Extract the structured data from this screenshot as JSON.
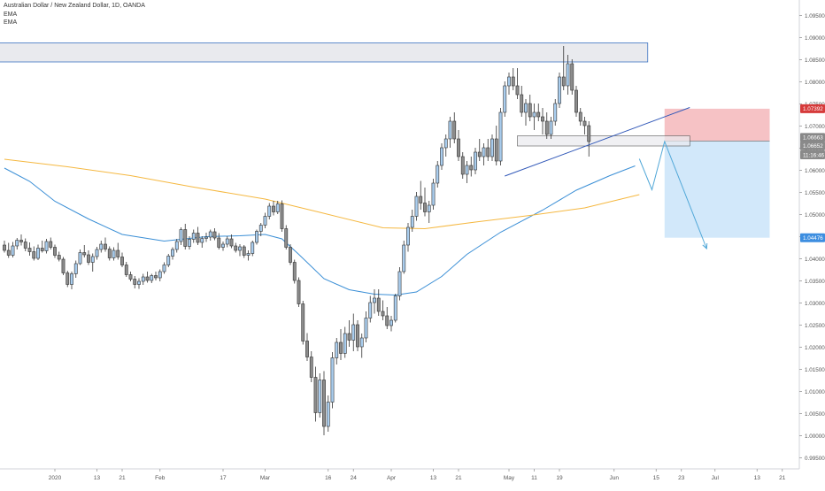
{
  "header": {
    "symbol_line": "Australian Dollar / New Zealand Dollar, 1D, OANDA",
    "indicators": [
      "EMA",
      "EMA"
    ]
  },
  "colors": {
    "up_fill": "#a9cdee",
    "down_fill": "#8c8c8c",
    "candle_stroke": "#333333",
    "ema_fast": "#3b8fd6",
    "ema_slow": "#f5b841",
    "trendline": "#3158b8",
    "zone_fill": "#e9eaee",
    "zone_stroke": "#3b73c2",
    "stop_fill": "#f5b7bb",
    "target_fill": "#cde5fa",
    "projection": "#52a8d8",
    "axis_text": "#555555"
  },
  "chart_data": {
    "type": "candlestick",
    "symbol": "AUDNZD",
    "timeframe": "1D",
    "y_axis": {
      "range": [
        0.9925,
        1.0985
      ],
      "ticks": [
        "1.09500",
        "1.09000",
        "1.08500",
        "1.08000",
        "1.07500",
        "1.07000",
        "1.06500",
        "1.06000",
        "1.05500",
        "1.05000",
        "1.04500",
        "1.04000",
        "1.03500",
        "1.03000",
        "1.02500",
        "1.02000",
        "1.01500",
        "1.01000",
        "1.00500",
        "1.00000",
        "0.99500"
      ]
    },
    "x_axis": {
      "tick_labels": [
        {
          "label": "2020",
          "bar": 12
        },
        {
          "label": "13",
          "bar": 22
        },
        {
          "label": "21",
          "bar": 28
        },
        {
          "label": "Feb",
          "bar": 37
        },
        {
          "label": "17",
          "bar": 52
        },
        {
          "label": "Mar",
          "bar": 62
        },
        {
          "label": "16",
          "bar": 77
        },
        {
          "label": "24",
          "bar": 83
        },
        {
          "label": "Apr",
          "bar": 92
        },
        {
          "label": "13",
          "bar": 102
        },
        {
          "label": "21",
          "bar": 108
        },
        {
          "label": "May",
          "bar": 120
        },
        {
          "label": "11",
          "bar": 126
        },
        {
          "label": "19",
          "bar": 132
        },
        {
          "label": "Jun",
          "bar": 145
        },
        {
          "label": "15",
          "bar": 155
        },
        {
          "label": "23",
          "bar": 161
        },
        {
          "label": "Jul",
          "bar": 169
        },
        {
          "label": "13",
          "bar": 179
        },
        {
          "label": "21",
          "bar": 185
        }
      ]
    },
    "ohlc": [
      [
        1.0431,
        1.0441,
        1.0414,
        1.0419
      ],
      [
        1.0419,
        1.0436,
        1.0402,
        1.0408
      ],
      [
        1.0408,
        1.0438,
        1.0403,
        1.0429
      ],
      [
        1.0429,
        1.0447,
        1.0421,
        1.0442
      ],
      [
        1.0442,
        1.0455,
        1.043,
        1.0438
      ],
      [
        1.0438,
        1.0446,
        1.0417,
        1.0424
      ],
      [
        1.0424,
        1.0437,
        1.0407,
        1.0416
      ],
      [
        1.0416,
        1.0428,
        1.0396,
        1.0401
      ],
      [
        1.0401,
        1.0432,
        1.0397,
        1.0424
      ],
      [
        1.0424,
        1.0441,
        1.0414,
        1.0418
      ],
      [
        1.0418,
        1.0445,
        1.0412,
        1.0439
      ],
      [
        1.0439,
        1.0448,
        1.0421,
        1.0426
      ],
      [
        1.0426,
        1.0432,
        1.0402,
        1.0408
      ],
      [
        1.0408,
        1.0416,
        1.0394,
        1.0399
      ],
      [
        1.0399,
        1.0404,
        1.0363,
        1.0368
      ],
      [
        1.0368,
        1.0373,
        1.0336,
        1.0342
      ],
      [
        1.0342,
        1.0371,
        1.0331,
        1.0366
      ],
      [
        1.0366,
        1.0396,
        1.0357,
        1.0389
      ],
      [
        1.0389,
        1.0421,
        1.0386,
        1.0414
      ],
      [
        1.0414,
        1.0431,
        1.0403,
        1.0409
      ],
      [
        1.0409,
        1.0419,
        1.0386,
        1.0392
      ],
      [
        1.0392,
        1.0412,
        1.0371,
        1.0405
      ],
      [
        1.0405,
        1.0427,
        1.0398,
        1.0421
      ],
      [
        1.0421,
        1.0441,
        1.0414,
        1.0433
      ],
      [
        1.0433,
        1.0448,
        1.0416,
        1.0422
      ],
      [
        1.0422,
        1.0428,
        1.0396,
        1.0402
      ],
      [
        1.0402,
        1.0426,
        1.0396,
        1.0419
      ],
      [
        1.0419,
        1.0436,
        1.0398,
        1.0404
      ],
      [
        1.0404,
        1.0414,
        1.0381,
        1.0386
      ],
      [
        1.0386,
        1.0393,
        1.0359,
        1.0364
      ],
      [
        1.0364,
        1.0371,
        1.0349,
        1.0354
      ],
      [
        1.0354,
        1.0361,
        1.0333,
        1.0342
      ],
      [
        1.0342,
        1.0356,
        1.0332,
        1.0349
      ],
      [
        1.0349,
        1.0366,
        1.0341,
        1.0359
      ],
      [
        1.0359,
        1.0371,
        1.0346,
        1.0351
      ],
      [
        1.0351,
        1.0366,
        1.0345,
        1.0362
      ],
      [
        1.0362,
        1.0371,
        1.0351,
        1.0357
      ],
      [
        1.0357,
        1.0376,
        1.0349,
        1.0371
      ],
      [
        1.0371,
        1.0392,
        1.0366,
        1.0386
      ],
      [
        1.0386,
        1.0411,
        1.0381,
        1.0406
      ],
      [
        1.0406,
        1.0426,
        1.0398,
        1.0421
      ],
      [
        1.0421,
        1.0445,
        1.0414,
        1.0439
      ],
      [
        1.0439,
        1.0471,
        1.0431,
        1.0466
      ],
      [
        1.0466,
        1.0479,
        1.0421,
        1.0428
      ],
      [
        1.0428,
        1.0451,
        1.0421,
        1.0444
      ],
      [
        1.0444,
        1.0466,
        1.0436,
        1.0458
      ],
      [
        1.0458,
        1.0472,
        1.0431,
        1.0437
      ],
      [
        1.0437,
        1.0451,
        1.0425,
        1.0446
      ],
      [
        1.0446,
        1.0459,
        1.0438,
        1.0449
      ],
      [
        1.0449,
        1.0466,
        1.0441,
        1.0461
      ],
      [
        1.0461,
        1.0469,
        1.0442,
        1.0447
      ],
      [
        1.0447,
        1.0458,
        1.0421,
        1.0426
      ],
      [
        1.0426,
        1.0439,
        1.0418,
        1.0433
      ],
      [
        1.0433,
        1.0451,
        1.0426,
        1.0445
      ],
      [
        1.0445,
        1.0455,
        1.0424,
        1.0429
      ],
      [
        1.0429,
        1.0436,
        1.0414,
        1.0419
      ],
      [
        1.0419,
        1.0433,
        1.0406,
        1.0427
      ],
      [
        1.0427,
        1.0431,
        1.0402,
        1.0408
      ],
      [
        1.0408,
        1.0419,
        1.0396,
        1.0412
      ],
      [
        1.0412,
        1.0441,
        1.0406,
        1.0437
      ],
      [
        1.0437,
        1.0466,
        1.0432,
        1.0462
      ],
      [
        1.0462,
        1.0481,
        1.0451,
        1.0476
      ],
      [
        1.0476,
        1.0504,
        1.0469,
        1.0496
      ],
      [
        1.0496,
        1.0526,
        1.0489,
        1.0519
      ],
      [
        1.0519,
        1.0531,
        1.0498,
        1.0506
      ],
      [
        1.0506,
        1.0531,
        1.0501,
        1.0524
      ],
      [
        1.0524,
        1.0532,
        1.0461,
        1.0468
      ],
      [
        1.0468,
        1.0476,
        1.0421,
        1.0426
      ],
      [
        1.0426,
        1.0433,
        1.0386,
        1.0392
      ],
      [
        1.0392,
        1.0398,
        1.0344,
        1.0351
      ],
      [
        1.0351,
        1.0358,
        1.0291,
        1.0298
      ],
      [
        1.0298,
        1.0305,
        1.0206,
        1.0214
      ],
      [
        1.0214,
        1.0232,
        1.0169,
        1.0178
      ],
      [
        1.0178,
        1.0191,
        1.0121,
        1.0132
      ],
      [
        1.0132,
        1.0156,
        1.0032,
        1.0052
      ],
      [
        1.0052,
        1.0141,
        1.0041,
        1.0126
      ],
      [
        1.0126,
        1.0146,
        1.0001,
        1.0021
      ],
      [
        1.0021,
        1.0091,
        1.0009,
        1.0076
      ],
      [
        1.0076,
        1.0189,
        1.0062,
        1.0176
      ],
      [
        1.0176,
        1.0221,
        1.0161,
        1.0211
      ],
      [
        1.0211,
        1.0241,
        1.0171,
        1.0186
      ],
      [
        1.0186,
        1.0246,
        1.0176,
        1.0231
      ],
      [
        1.0231,
        1.0261,
        1.0201,
        1.0216
      ],
      [
        1.0216,
        1.0276,
        1.0191,
        1.0251
      ],
      [
        1.0251,
        1.0261,
        1.0191,
        1.0201
      ],
      [
        1.0201,
        1.0231,
        1.0176,
        1.0221
      ],
      [
        1.0221,
        1.0281,
        1.0211,
        1.0266
      ],
      [
        1.0266,
        1.0316,
        1.0256,
        1.0301
      ],
      [
        1.0301,
        1.0331,
        1.0276,
        1.0311
      ],
      [
        1.0311,
        1.0331,
        1.0271,
        1.0281
      ],
      [
        1.0281,
        1.0306,
        1.0261,
        1.0271
      ],
      [
        1.0271,
        1.0291,
        1.0241,
        1.0249
      ],
      [
        1.0249,
        1.0271,
        1.0236,
        1.0261
      ],
      [
        1.0261,
        1.0321,
        1.0256,
        1.0316
      ],
      [
        1.0316,
        1.0381,
        1.0306,
        1.0371
      ],
      [
        1.0371,
        1.0441,
        1.0366,
        1.0431
      ],
      [
        1.0431,
        1.0481,
        1.0416,
        1.0471
      ],
      [
        1.0471,
        1.0511,
        1.0461,
        1.0496
      ],
      [
        1.0496,
        1.0551,
        1.0486,
        1.0541
      ],
      [
        1.0541,
        1.0576,
        1.0511,
        1.0526
      ],
      [
        1.0526,
        1.0561,
        1.0496,
        1.0506
      ],
      [
        1.0506,
        1.0531,
        1.0481,
        1.0521
      ],
      [
        1.0521,
        1.0581,
        1.0511,
        1.0571
      ],
      [
        1.0571,
        1.0621,
        1.0561,
        1.0611
      ],
      [
        1.0611,
        1.0661,
        1.0601,
        1.0651
      ],
      [
        1.0651,
        1.0681,
        1.0631,
        1.0671
      ],
      [
        1.0671,
        1.0721,
        1.0651,
        1.0711
      ],
      [
        1.0711,
        1.0731,
        1.0661,
        1.0671
      ],
      [
        1.0671,
        1.0691,
        1.0621,
        1.0631
      ],
      [
        1.0631,
        1.0641,
        1.0581,
        1.0591
      ],
      [
        1.0591,
        1.0621,
        1.0571,
        1.0611
      ],
      [
        1.0611,
        1.0631,
        1.0586,
        1.0601
      ],
      [
        1.0601,
        1.0651,
        1.0591,
        1.0641
      ],
      [
        1.0641,
        1.0671,
        1.0621,
        1.0631
      ],
      [
        1.0631,
        1.0661,
        1.0611,
        1.0651
      ],
      [
        1.0651,
        1.0671,
        1.0621,
        1.0631
      ],
      [
        1.0631,
        1.0681,
        1.0621,
        1.0671
      ],
      [
        1.0671,
        1.0701,
        1.0611,
        1.0621
      ],
      [
        1.0621,
        1.0741,
        1.0611,
        1.0731
      ],
      [
        1.0731,
        1.0801,
        1.0721,
        1.0791
      ],
      [
        1.0791,
        1.0821,
        1.0771,
        1.0811
      ],
      [
        1.0811,
        1.0831,
        1.0781,
        1.0791
      ],
      [
        1.0791,
        1.0831,
        1.0761,
        1.0771
      ],
      [
        1.0771,
        1.0791,
        1.0721,
        1.0731
      ],
      [
        1.0731,
        1.0761,
        1.0701,
        1.0751
      ],
      [
        1.0751,
        1.0771,
        1.0711,
        1.0721
      ],
      [
        1.0721,
        1.0751,
        1.0691,
        1.0731
      ],
      [
        1.0731,
        1.0751,
        1.0711,
        1.0721
      ],
      [
        1.0721,
        1.0741,
        1.0681,
        1.0711
      ],
      [
        1.0711,
        1.0731,
        1.0671,
        1.0681
      ],
      [
        1.0681,
        1.0721,
        1.0671,
        1.0711
      ],
      [
        1.0711,
        1.0761,
        1.0701,
        1.0751
      ],
      [
        1.0751,
        1.0821,
        1.0741,
        1.0811
      ],
      [
        1.0811,
        1.0881,
        1.0781,
        1.0791
      ],
      [
        1.0791,
        1.0861,
        1.0771,
        1.0841
      ],
      [
        1.0841,
        1.0851,
        1.0771,
        1.0781
      ],
      [
        1.0781,
        1.0791,
        1.0721,
        1.0731
      ],
      [
        1.0731,
        1.0741,
        1.0701,
        1.0711
      ],
      [
        1.0711,
        1.0721,
        1.0681,
        1.0701
      ],
      [
        1.0701,
        1.0711,
        1.0631,
        1.0665
      ]
    ],
    "series": [
      {
        "name": "EMA",
        "role": "fast",
        "color": "#3b8fd6",
        "points": [
          [
            0,
            1.0605
          ],
          [
            6,
            1.0575
          ],
          [
            12,
            1.053
          ],
          [
            20,
            1.049
          ],
          [
            28,
            1.0455
          ],
          [
            38,
            1.044
          ],
          [
            48,
            1.045
          ],
          [
            56,
            1.0452
          ],
          [
            62,
            1.0455
          ],
          [
            66,
            1.0445
          ],
          [
            70,
            1.041
          ],
          [
            76,
            1.0355
          ],
          [
            82,
            1.033
          ],
          [
            88,
            1.032
          ],
          [
            93,
            1.0318
          ],
          [
            98,
            1.0325
          ],
          [
            104,
            1.036
          ],
          [
            110,
            1.041
          ],
          [
            118,
            1.046
          ],
          [
            128,
            1.051
          ],
          [
            136,
            1.0555
          ],
          [
            144,
            1.0588
          ],
          [
            150,
            1.061
          ]
        ]
      },
      {
        "name": "EMA",
        "role": "slow",
        "color": "#f5b841",
        "points": [
          [
            0,
            1.0625
          ],
          [
            15,
            1.0608
          ],
          [
            30,
            1.0588
          ],
          [
            45,
            1.0562
          ],
          [
            62,
            1.0535
          ],
          [
            75,
            1.0505
          ],
          [
            90,
            1.047
          ],
          [
            100,
            1.0468
          ],
          [
            112,
            1.0483
          ],
          [
            125,
            1.0498
          ],
          [
            138,
            1.0515
          ],
          [
            151,
            1.0545
          ]
        ]
      }
    ],
    "drawings": {
      "resistance_zone": {
        "x_range": [
          -2,
          153
        ],
        "y_range": [
          1.0845,
          1.0888
        ]
      },
      "support_zone": {
        "x_range": [
          122,
          163
        ],
        "y_range": [
          1.0655,
          1.0678
        ]
      },
      "trendline": {
        "from": [
          119,
          1.0587
        ],
        "to": [
          163,
          1.0742
        ]
      },
      "short_position": {
        "entry": 1.06663,
        "stop": 1.07392,
        "target": 1.04476,
        "x_range": [
          157,
          182
        ]
      },
      "projection_path": [
        [
          151,
          1.0626
        ],
        [
          154,
          1.0556
        ],
        [
          157,
          1.0665
        ],
        [
          167,
          1.0423
        ]
      ]
    },
    "price_labels": [
      {
        "text": "1.07392",
        "kind": "stop"
      },
      {
        "text": "1.06663",
        "kind": "entry"
      },
      {
        "text": "1.06652",
        "kind": "last-price"
      },
      {
        "text": "11:16:46",
        "kind": "countdown"
      },
      {
        "text": "1.04476",
        "kind": "target"
      }
    ]
  }
}
